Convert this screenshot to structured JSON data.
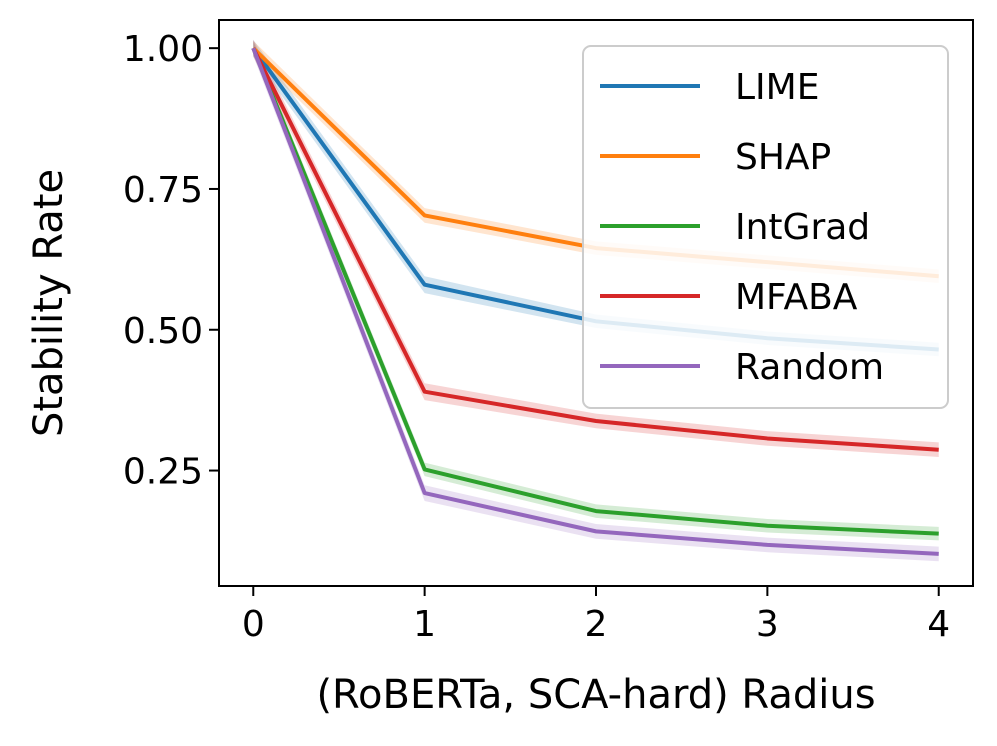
{
  "chart_data": {
    "type": "line",
    "title": "",
    "xlabel": "(RoBERTa, SCA-hard) Radius",
    "ylabel": "Stability Rate",
    "x": [
      0,
      1,
      2,
      3,
      4
    ],
    "xlim": [
      -0.2,
      4.2
    ],
    "ylim": [
      0.045,
      1.05
    ],
    "xticks": [
      0,
      1,
      2,
      3,
      4
    ],
    "xtick_labels": [
      "0",
      "1",
      "2",
      "3",
      "4"
    ],
    "yticks": [
      0.25,
      0.5,
      0.75,
      1.0
    ],
    "ytick_labels": [
      "0.25",
      "0.50",
      "0.75",
      "1.00"
    ],
    "grid": false,
    "legend_position": "top-right",
    "series": [
      {
        "name": "LIME",
        "color": "#1f77b4",
        "values": [
          1.0,
          0.58,
          0.515,
          0.485,
          0.465
        ],
        "band": [
          0.015,
          0.015,
          0.012,
          0.012,
          0.012
        ]
      },
      {
        "name": "SHAP",
        "color": "#ff7f0e",
        "values": [
          1.0,
          0.703,
          0.645,
          0.62,
          0.595
        ],
        "band": [
          0.013,
          0.013,
          0.012,
          0.012,
          0.012
        ]
      },
      {
        "name": "IntGrad",
        "color": "#2ca02c",
        "values": [
          1.0,
          0.252,
          0.178,
          0.152,
          0.138
        ],
        "band": [
          0.012,
          0.012,
          0.012,
          0.012,
          0.012
        ]
      },
      {
        "name": "MFABA",
        "color": "#d62728",
        "values": [
          1.0,
          0.39,
          0.338,
          0.307,
          0.287
        ],
        "band": [
          0.015,
          0.015,
          0.013,
          0.013,
          0.013
        ]
      },
      {
        "name": "Random",
        "color": "#9467bd",
        "values": [
          1.0,
          0.21,
          0.142,
          0.118,
          0.102
        ],
        "band": [
          0.014,
          0.014,
          0.013,
          0.013,
          0.013
        ]
      }
    ]
  }
}
